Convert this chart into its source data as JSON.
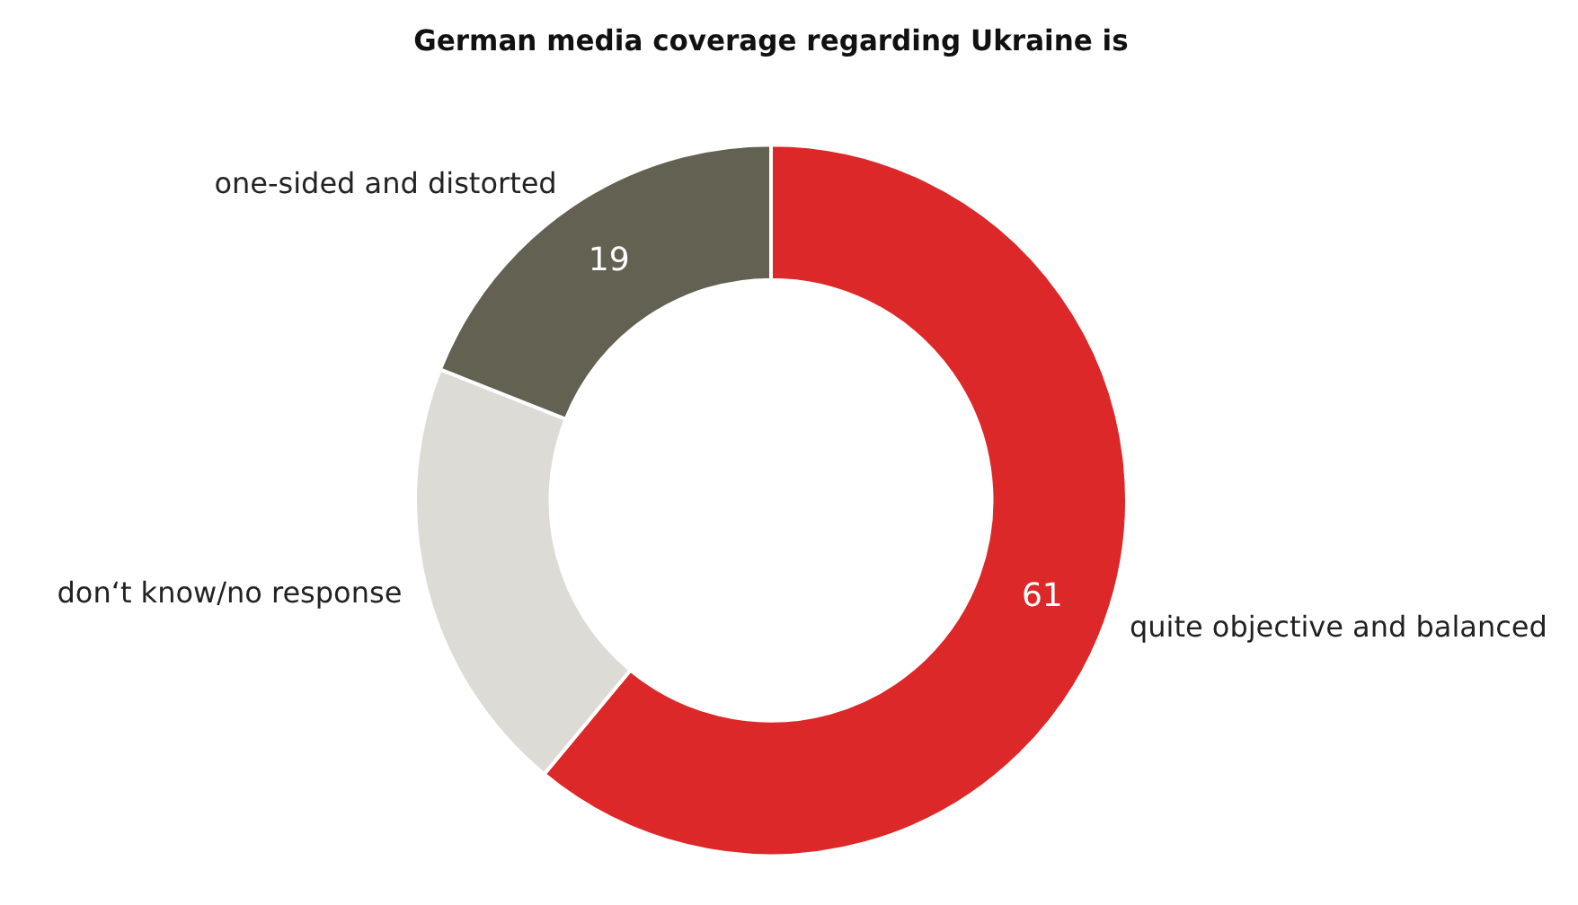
{
  "chart_data": {
    "type": "donut",
    "title": "German media coverage regarding Ukraine is",
    "categories": [
      "quite objective and balanced",
      "don‘t know/no response",
      "one-sided and distorted"
    ],
    "values": [
      61,
      20,
      19
    ],
    "value_labels": [
      "61",
      null,
      "19"
    ],
    "colors": [
      "#dc2829",
      "#dcdbd5",
      "#636152"
    ],
    "legend": false
  }
}
